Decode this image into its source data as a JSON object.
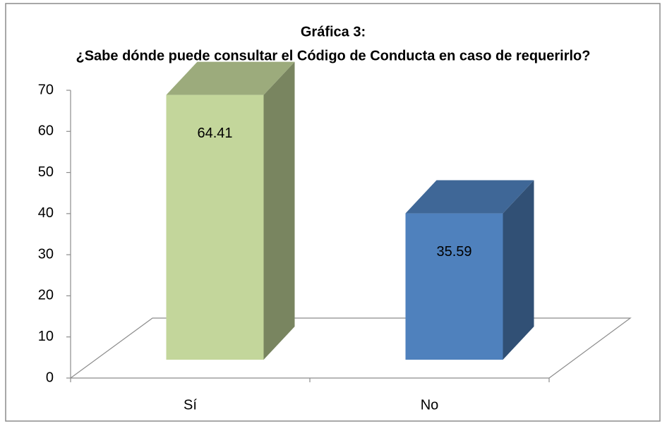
{
  "chart_data": {
    "type": "bar",
    "title": "Gráfica 3:",
    "subtitle": "¿Sabe dónde puede consultar el Código de Conducta en caso de requerirlo?",
    "categories": [
      "Sí",
      "No"
    ],
    "values": [
      64.41,
      35.59
    ],
    "colors": [
      "#c3d69b",
      "#4f81bd"
    ],
    "ylim": [
      0,
      70
    ],
    "yticks": [
      0,
      10,
      20,
      30,
      40,
      50,
      60,
      70
    ],
    "grid": false
  }
}
